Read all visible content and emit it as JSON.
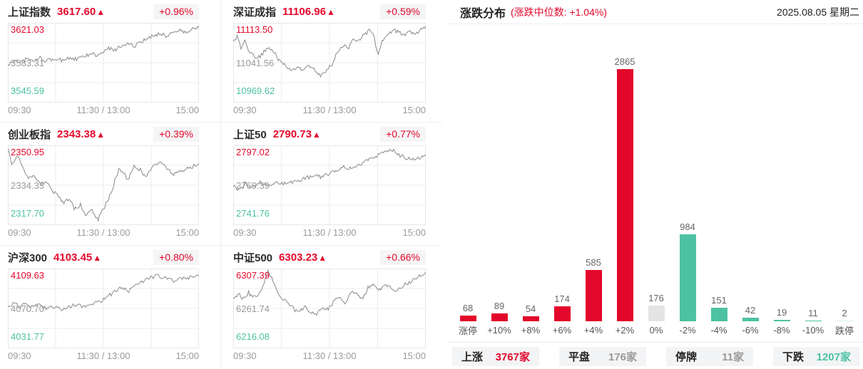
{
  "meta": {
    "up_arrow": "▲",
    "time_axis": [
      "09:30",
      "11:30 / 13:00",
      "15:00"
    ],
    "colors": {
      "accent_red": "#e3082b",
      "accent_green": "#4cc2a2",
      "flat_gray": "#e4e4e4",
      "limit_down_green": "#d9f1e8",
      "line_gray": "#8a8a8a",
      "grid_gray": "#ececec"
    }
  },
  "chart_data": [
    {
      "type": "line",
      "title": "上证指数",
      "current": "3617.60",
      "change": "+0.96%",
      "high_label": "3621.03",
      "mid_label": "3583.31",
      "low_label": "3545.59",
      "x_ticks": [
        "09:30",
        "11:30 / 13:00",
        "15:00"
      ],
      "ylim": [
        3545.59,
        3621.03
      ],
      "shape": [
        [
          0,
          0.47
        ],
        [
          0.04,
          0.54
        ],
        [
          0.07,
          0.5
        ],
        [
          0.1,
          0.55
        ],
        [
          0.13,
          0.52
        ],
        [
          0.17,
          0.56
        ],
        [
          0.2,
          0.52
        ],
        [
          0.24,
          0.55
        ],
        [
          0.28,
          0.53
        ],
        [
          0.32,
          0.56
        ],
        [
          0.36,
          0.54
        ],
        [
          0.4,
          0.58
        ],
        [
          0.44,
          0.61
        ],
        [
          0.47,
          0.59
        ],
        [
          0.5,
          0.63
        ],
        [
          0.53,
          0.68
        ],
        [
          0.56,
          0.66
        ],
        [
          0.6,
          0.72
        ],
        [
          0.63,
          0.75
        ],
        [
          0.66,
          0.7
        ],
        [
          0.7,
          0.76
        ],
        [
          0.73,
          0.8
        ],
        [
          0.76,
          0.84
        ],
        [
          0.8,
          0.87
        ],
        [
          0.83,
          0.83
        ],
        [
          0.86,
          0.88
        ],
        [
          0.9,
          0.91
        ],
        [
          0.93,
          0.87
        ],
        [
          0.96,
          0.92
        ],
        [
          1,
          0.95
        ]
      ]
    },
    {
      "type": "line",
      "title": "深证成指",
      "current": "11106.96",
      "change": "+0.59%",
      "high_label": "11113.50",
      "mid_label": "11041.56",
      "low_label": "10969.62",
      "x_ticks": [
        "09:30",
        "11:30 / 13:00",
        "15:00"
      ],
      "ylim": [
        10969.62,
        11113.5
      ],
      "shape": [
        [
          0,
          0.74
        ],
        [
          0.02,
          0.82
        ],
        [
          0.04,
          0.68
        ],
        [
          0.06,
          0.76
        ],
        [
          0.09,
          0.62
        ],
        [
          0.12,
          0.55
        ],
        [
          0.15,
          0.6
        ],
        [
          0.18,
          0.7
        ],
        [
          0.21,
          0.64
        ],
        [
          0.24,
          0.52
        ],
        [
          0.27,
          0.46
        ],
        [
          0.3,
          0.4
        ],
        [
          0.33,
          0.44
        ],
        [
          0.36,
          0.4
        ],
        [
          0.39,
          0.46
        ],
        [
          0.42,
          0.42
        ],
        [
          0.45,
          0.34
        ],
        [
          0.48,
          0.4
        ],
        [
          0.51,
          0.46
        ],
        [
          0.54,
          0.62
        ],
        [
          0.57,
          0.72
        ],
        [
          0.6,
          0.68
        ],
        [
          0.62,
          0.8
        ],
        [
          0.65,
          0.76
        ],
        [
          0.68,
          0.86
        ],
        [
          0.71,
          0.9
        ],
        [
          0.73,
          0.84
        ],
        [
          0.75,
          0.58
        ],
        [
          0.77,
          0.76
        ],
        [
          0.8,
          0.84
        ],
        [
          0.83,
          0.92
        ],
        [
          0.86,
          0.88
        ],
        [
          0.89,
          0.84
        ],
        [
          0.92,
          0.88
        ],
        [
          0.95,
          0.86
        ],
        [
          1,
          0.95
        ]
      ]
    },
    {
      "type": "line",
      "title": "创业板指",
      "current": "2343.38",
      "change": "+0.39%",
      "high_label": "2350.95",
      "mid_label": "2334.33",
      "low_label": "2317.70",
      "x_ticks": [
        "09:30",
        "11:30 / 13:00",
        "15:00"
      ],
      "ylim": [
        2317.7,
        2350.95
      ],
      "shape": [
        [
          0,
          0.97
        ],
        [
          0.02,
          0.76
        ],
        [
          0.05,
          0.88
        ],
        [
          0.08,
          0.7
        ],
        [
          0.11,
          0.58
        ],
        [
          0.14,
          0.63
        ],
        [
          0.17,
          0.5
        ],
        [
          0.2,
          0.55
        ],
        [
          0.23,
          0.42
        ],
        [
          0.26,
          0.38
        ],
        [
          0.29,
          0.28
        ],
        [
          0.32,
          0.33
        ],
        [
          0.35,
          0.2
        ],
        [
          0.38,
          0.26
        ],
        [
          0.41,
          0.12
        ],
        [
          0.44,
          0.2
        ],
        [
          0.47,
          0.06
        ],
        [
          0.5,
          0.2
        ],
        [
          0.53,
          0.34
        ],
        [
          0.56,
          0.56
        ],
        [
          0.58,
          0.7
        ],
        [
          0.61,
          0.64
        ],
        [
          0.63,
          0.56
        ],
        [
          0.66,
          0.74
        ],
        [
          0.69,
          0.7
        ],
        [
          0.72,
          0.6
        ],
        [
          0.75,
          0.72
        ],
        [
          0.78,
          0.76
        ],
        [
          0.81,
          0.78
        ],
        [
          0.84,
          0.7
        ],
        [
          0.87,
          0.63
        ],
        [
          0.9,
          0.67
        ],
        [
          0.94,
          0.71
        ],
        [
          1,
          0.77
        ]
      ]
    },
    {
      "type": "line",
      "title": "上证50",
      "current": "2790.73",
      "change": "+0.77%",
      "high_label": "2797.02",
      "mid_label": "2769.39",
      "low_label": "2741.76",
      "x_ticks": [
        "09:30",
        "11:30 / 13:00",
        "15:00"
      ],
      "ylim": [
        2741.76,
        2797.02
      ],
      "shape": [
        [
          0,
          0.5
        ],
        [
          0.03,
          0.44
        ],
        [
          0.06,
          0.52
        ],
        [
          0.1,
          0.48
        ],
        [
          0.14,
          0.53
        ],
        [
          0.18,
          0.5
        ],
        [
          0.22,
          0.54
        ],
        [
          0.26,
          0.51
        ],
        [
          0.3,
          0.54
        ],
        [
          0.34,
          0.56
        ],
        [
          0.38,
          0.59
        ],
        [
          0.42,
          0.62
        ],
        [
          0.46,
          0.6
        ],
        [
          0.5,
          0.65
        ],
        [
          0.54,
          0.69
        ],
        [
          0.58,
          0.73
        ],
        [
          0.61,
          0.7
        ],
        [
          0.64,
          0.74
        ],
        [
          0.68,
          0.79
        ],
        [
          0.72,
          0.84
        ],
        [
          0.76,
          0.89
        ],
        [
          0.8,
          0.93
        ],
        [
          0.83,
          0.95
        ],
        [
          0.86,
          0.88
        ],
        [
          0.89,
          0.85
        ],
        [
          0.92,
          0.83
        ],
        [
          0.95,
          0.82
        ],
        [
          1,
          0.89
        ]
      ]
    },
    {
      "type": "line",
      "title": "沪深300",
      "current": "4103.45",
      "change": "+0.80%",
      "high_label": "4109.63",
      "mid_label": "4070.70",
      "low_label": "4031.77",
      "x_ticks": [
        "09:30",
        "11:30 / 13:00",
        "15:00"
      ],
      "ylim": [
        4031.77,
        4109.63
      ],
      "shape": [
        [
          0,
          0.5
        ],
        [
          0.03,
          0.57
        ],
        [
          0.06,
          0.52
        ],
        [
          0.09,
          0.56
        ],
        [
          0.12,
          0.51
        ],
        [
          0.16,
          0.54
        ],
        [
          0.2,
          0.5
        ],
        [
          0.24,
          0.52
        ],
        [
          0.28,
          0.48
        ],
        [
          0.32,
          0.52
        ],
        [
          0.36,
          0.54
        ],
        [
          0.4,
          0.52
        ],
        [
          0.44,
          0.56
        ],
        [
          0.48,
          0.58
        ],
        [
          0.51,
          0.63
        ],
        [
          0.54,
          0.68
        ],
        [
          0.57,
          0.73
        ],
        [
          0.6,
          0.77
        ],
        [
          0.63,
          0.71
        ],
        [
          0.66,
          0.8
        ],
        [
          0.7,
          0.84
        ],
        [
          0.74,
          0.88
        ],
        [
          0.78,
          0.91
        ],
        [
          0.82,
          0.88
        ],
        [
          0.86,
          0.85
        ],
        [
          0.9,
          0.87
        ],
        [
          0.95,
          0.89
        ],
        [
          1,
          0.93
        ]
      ]
    },
    {
      "type": "line",
      "title": "中证500",
      "current": "6303.23",
      "change": "+0.66%",
      "high_label": "6307.39",
      "mid_label": "6261.74",
      "low_label": "6216.08",
      "x_ticks": [
        "09:30",
        "11:30 / 13:00",
        "15:00"
      ],
      "ylim": [
        6216.08,
        6307.39
      ],
      "shape": [
        [
          0,
          0.6
        ],
        [
          0.03,
          0.68
        ],
        [
          0.05,
          0.62
        ],
        [
          0.08,
          0.7
        ],
        [
          0.1,
          0.63
        ],
        [
          0.13,
          0.66
        ],
        [
          0.16,
          0.8
        ],
        [
          0.18,
          0.97
        ],
        [
          0.2,
          0.88
        ],
        [
          0.23,
          0.72
        ],
        [
          0.25,
          0.64
        ],
        [
          0.28,
          0.58
        ],
        [
          0.31,
          0.5
        ],
        [
          0.34,
          0.44
        ],
        [
          0.37,
          0.52
        ],
        [
          0.4,
          0.46
        ],
        [
          0.43,
          0.42
        ],
        [
          0.46,
          0.52
        ],
        [
          0.49,
          0.48
        ],
        [
          0.52,
          0.58
        ],
        [
          0.55,
          0.66
        ],
        [
          0.58,
          0.54
        ],
        [
          0.61,
          0.72
        ],
        [
          0.64,
          0.68
        ],
        [
          0.67,
          0.62
        ],
        [
          0.7,
          0.76
        ],
        [
          0.73,
          0.8
        ],
        [
          0.76,
          0.74
        ],
        [
          0.79,
          0.8
        ],
        [
          0.82,
          0.76
        ],
        [
          0.85,
          0.72
        ],
        [
          0.88,
          0.78
        ],
        [
          0.91,
          0.82
        ],
        [
          0.94,
          0.86
        ],
        [
          1,
          0.95
        ]
      ]
    },
    {
      "type": "bar",
      "title": "涨跌分布",
      "median_note": "(涨跌中位数: +1.04%)",
      "categories": [
        "涨停",
        "+10%",
        "+8%",
        "+6%",
        "+4%",
        "+2%",
        "0%",
        "-2%",
        "-4%",
        "-6%",
        "-8%",
        "-10%",
        "跌停"
      ],
      "values": [
        68,
        89,
        54,
        174,
        585,
        2865,
        176,
        984,
        151,
        42,
        19,
        11,
        2
      ],
      "bar_colors": [
        "#e3082b",
        "#e3082b",
        "#e3082b",
        "#e3082b",
        "#e3082b",
        "#e3082b",
        "#e4e4e4",
        "#4cc2a2",
        "#4cc2a2",
        "#4cc2a2",
        "#4cc2a2",
        "#4cc2a2",
        "#d9f1e8"
      ],
      "ylim": [
        0,
        2865
      ],
      "grid": false,
      "value_labels": true
    }
  ],
  "distribution_header": {
    "title": "涨跌分布",
    "median_note": "(涨跌中位数: +1.04%)",
    "date": "2025.08.05 星期二"
  },
  "summary": [
    {
      "label": "上涨",
      "value": "3767家",
      "color": "red"
    },
    {
      "label": "平盘",
      "value": "176家",
      "color": "gray"
    },
    {
      "label": "停牌",
      "value": "11家",
      "color": "gray"
    },
    {
      "label": "下跌",
      "value": "1207家",
      "color": "green"
    }
  ]
}
